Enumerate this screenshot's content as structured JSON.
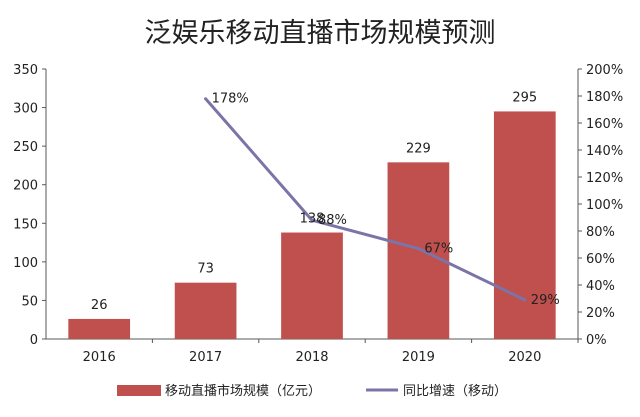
{
  "chart_data": {
    "type": "bar+line",
    "title": "泛娱乐移动直播市场规模预测",
    "categories": [
      "2016",
      "2017",
      "2018",
      "2019",
      "2020"
    ],
    "series": [
      {
        "name": "移动直播市场规模（亿元）",
        "type": "bar",
        "axis": "left",
        "values": [
          26,
          73,
          138,
          229,
          295
        ],
        "labels": [
          "26",
          "73",
          "138",
          "229",
          "295"
        ],
        "color": "#c0504d"
      },
      {
        "name": "同比增速（移动）",
        "type": "line",
        "axis": "right",
        "values": [
          null,
          178,
          88,
          67,
          29
        ],
        "labels": [
          "",
          "178%",
          "88%",
          "67%",
          "29%"
        ],
        "color": "#7b74a8"
      }
    ],
    "y_left": {
      "min": 0,
      "max": 350,
      "ticks": [
        0,
        50,
        100,
        150,
        200,
        250,
        300,
        350
      ],
      "tick_labels": [
        "0",
        "50",
        "100",
        "150",
        "200",
        "250",
        "300",
        "350"
      ]
    },
    "y_right": {
      "min": 0,
      "max": 200,
      "ticks": [
        0,
        20,
        40,
        60,
        80,
        100,
        120,
        140,
        160,
        180,
        200
      ],
      "tick_labels": [
        "0%",
        "20%",
        "40%",
        "60%",
        "80%",
        "100%",
        "120%",
        "140%",
        "160%",
        "180%",
        "200%"
      ]
    },
    "legend_position": "bottom",
    "grid": false
  }
}
